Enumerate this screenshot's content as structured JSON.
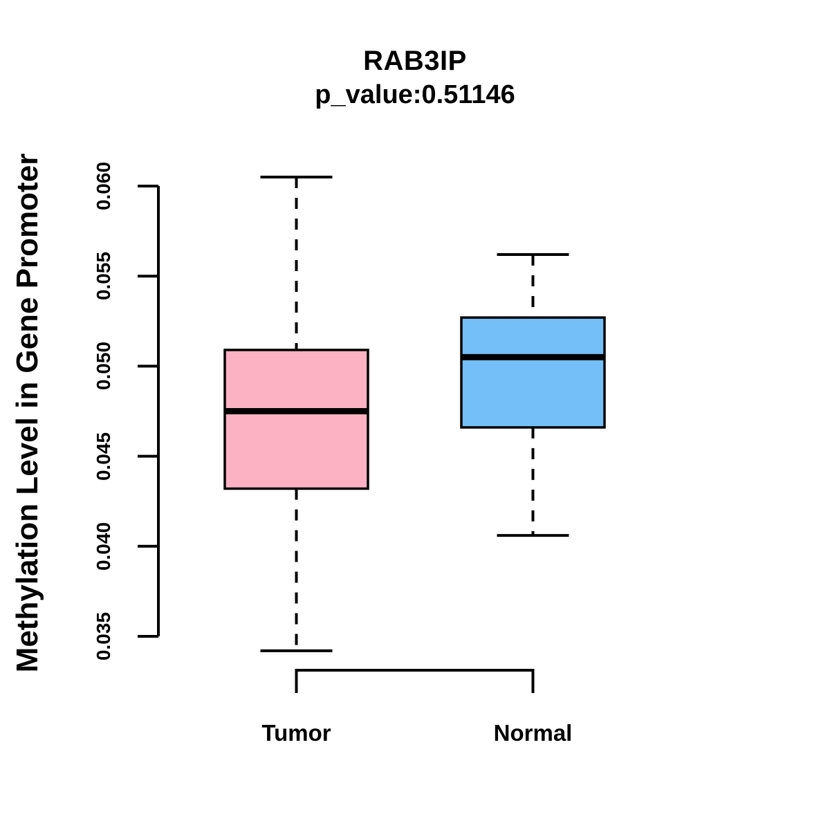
{
  "chart_data": {
    "type": "boxplot",
    "title": "RAB3IP",
    "subtitle": "p_value:0.51146",
    "gene": "RAB3IP",
    "p_value": 0.51146,
    "ylabel": "Methylation Level in Gene Promoter",
    "xlabel": "",
    "categories": [
      "Tumor",
      "Normal"
    ],
    "ytick_labels": [
      "0.035",
      "0.040",
      "0.045",
      "0.050",
      "0.055",
      "0.060"
    ],
    "yticks": [
      0.035,
      0.04,
      0.045,
      0.05,
      0.055,
      0.06
    ],
    "ylim": [
      0.0335,
      0.0608
    ],
    "grid": false,
    "legend": "none",
    "whisker_style": "dashed",
    "colors": {
      "tumor_fill": "#FDB2C3",
      "normal_fill": "#75BFF8",
      "stroke": "#000000",
      "background": "#FFFFFF"
    },
    "series": [
      {
        "name": "Tumor",
        "color": "#FDB2C3",
        "whisker_low": 0.0342,
        "q1": 0.0432,
        "median": 0.0475,
        "q3": 0.0509,
        "whisker_high": 0.0605
      },
      {
        "name": "Normal",
        "color": "#75BFF8",
        "whisker_low": 0.0406,
        "q1": 0.0466,
        "median": 0.0505,
        "q3": 0.0527,
        "whisker_high": 0.0562
      }
    ]
  }
}
